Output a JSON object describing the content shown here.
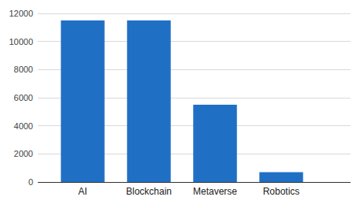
{
  "chart_data": {
    "type": "bar",
    "categories": [
      "AI",
      "Blockchain",
      "Metaverse",
      "Robotics"
    ],
    "values": [
      11500,
      11500,
      5500,
      700
    ],
    "color": "#1f6fc5",
    "ylim": [
      0,
      12000
    ],
    "yticks": [
      0,
      2000,
      4000,
      6000,
      8000,
      10000,
      12000
    ],
    "grid": true
  }
}
